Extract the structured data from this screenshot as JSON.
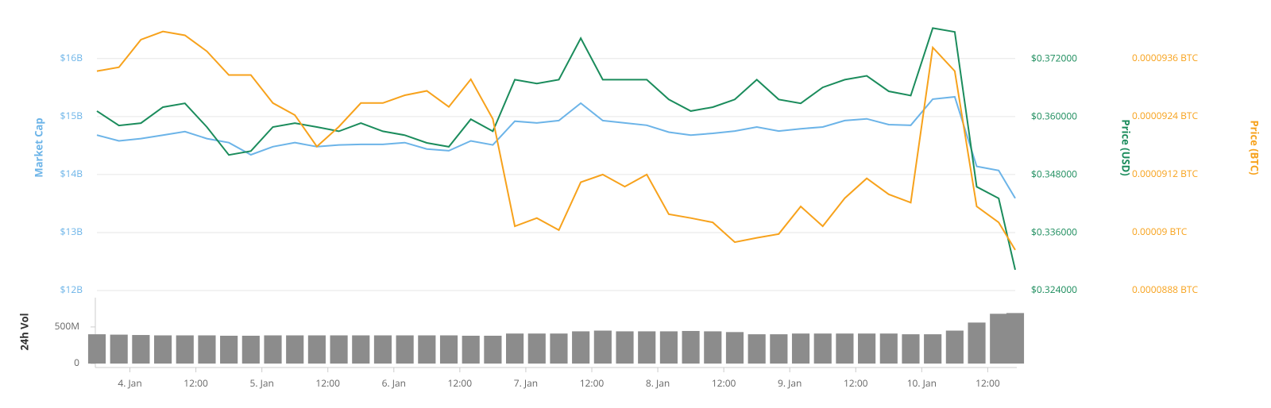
{
  "chart_data": [
    {
      "type": "line",
      "y_label": "Market Cap",
      "y2_label": "Price (USD)",
      "y3_label": "Price (BTC)",
      "x": [
        -6,
        -2,
        2,
        6,
        10,
        14,
        18,
        22,
        26,
        30,
        34,
        38,
        42,
        46,
        50,
        54,
        58,
        62,
        66,
        70,
        74,
        78,
        82,
        86,
        90,
        94,
        98,
        102,
        106,
        110,
        114,
        118,
        122,
        126,
        130,
        134,
        138,
        142,
        146,
        150,
        154,
        158,
        161
      ],
      "xlim": [
        -6,
        161
      ],
      "ylim": [
        12000000000,
        16900000000
      ],
      "yticks": [
        {
          "value": 12000000000,
          "label": "$12B"
        },
        {
          "value": 13000000000,
          "label": "$13B"
        },
        {
          "value": 14000000000,
          "label": "$14B"
        },
        {
          "value": 15000000000,
          "label": "$15B"
        },
        {
          "value": 16000000000,
          "label": "$16B"
        }
      ],
      "y2lim": [
        0.324,
        0.3829
      ],
      "y2ticks": [
        {
          "value": 0.324,
          "label": "$0.324000"
        },
        {
          "value": 0.336,
          "label": "$0.336000"
        },
        {
          "value": 0.348,
          "label": "$0.348000"
        },
        {
          "value": 0.36,
          "label": "$0.360000"
        },
        {
          "value": 0.372,
          "label": "$0.372000"
        }
      ],
      "y3lim": [
        8.88e-05,
        9.468e-05
      ],
      "y3ticks": [
        {
          "value": 8.88e-05,
          "label": "0.0000888 BTC"
        },
        {
          "value": 9e-05,
          "label": "0.00009 BTC"
        },
        {
          "value": 9.12e-05,
          "label": "0.0000912 BTC"
        },
        {
          "value": 9.24e-05,
          "label": "0.0000924 BTC"
        },
        {
          "value": 9.36e-05,
          "label": "0.0000936 BTC"
        }
      ],
      "grid": true,
      "series": [
        {
          "name": "Market Cap",
          "color": "#6cb4e8",
          "axis": "y",
          "values": [
            14680000000,
            14580000000,
            14620000000,
            14680000000,
            14740000000,
            14620000000,
            14550000000,
            14340000000,
            14480000000,
            14550000000,
            14480000000,
            14510000000,
            14520000000,
            14520000000,
            14550000000,
            14440000000,
            14410000000,
            14580000000,
            14510000000,
            14920000000,
            14890000000,
            14930000000,
            15230000000,
            14930000000,
            14890000000,
            14850000000,
            14730000000,
            14680000000,
            14710000000,
            14750000000,
            14820000000,
            14750000000,
            14790000000,
            14820000000,
            14930000000,
            14960000000,
            14860000000,
            14850000000,
            15300000000,
            15340000000,
            14140000000,
            14070000000,
            13590000000
          ]
        },
        {
          "name": "Price (USD)",
          "color": "#1b8c5c",
          "axis": "y2",
          "values": [
            0.3612,
            0.3582,
            0.3587,
            0.362,
            0.3628,
            0.3579,
            0.3521,
            0.3529,
            0.3579,
            0.3587,
            0.3579,
            0.357,
            0.3587,
            0.357,
            0.3562,
            0.3546,
            0.3538,
            0.3595,
            0.357,
            0.3677,
            0.3669,
            0.3677,
            0.3763,
            0.3677,
            0.3677,
            0.3677,
            0.3636,
            0.3612,
            0.362,
            0.3636,
            0.3677,
            0.3636,
            0.3628,
            0.3661,
            0.3677,
            0.3685,
            0.3653,
            0.3644,
            0.3784,
            0.3776,
            0.3455,
            0.3431,
            0.3283
          ]
        },
        {
          "name": "Price (BTC)",
          "color": "#f7a21c",
          "axis": "y3",
          "values": [
            9.334e-05,
            9.342e-05,
            9.399e-05,
            9.416e-05,
            9.408e-05,
            9.375e-05,
            9.326e-05,
            9.326e-05,
            9.268e-05,
            9.243e-05,
            9.178e-05,
            9.219e-05,
            9.268e-05,
            9.268e-05,
            9.284e-05,
            9.293e-05,
            9.26e-05,
            9.317e-05,
            9.235e-05,
            9.013e-05,
            9.03e-05,
            9.005e-05,
            9.104e-05,
            9.12e-05,
            9.095e-05,
            9.12e-05,
            9.038e-05,
            9.03e-05,
            9.021e-05,
            8.98e-05,
            8.989e-05,
            8.997e-05,
            9.054e-05,
            9.013e-05,
            9.071e-05,
            9.112e-05,
            9.079e-05,
            9.062e-05,
            9.383e-05,
            9.334e-05,
            9.054e-05,
            9.021e-05,
            8.964e-05
          ]
        }
      ]
    },
    {
      "type": "bar",
      "y_label": "24h Vol",
      "x": [
        -6,
        -2,
        2,
        6,
        10,
        14,
        18,
        22,
        26,
        30,
        34,
        38,
        42,
        46,
        50,
        54,
        58,
        62,
        66,
        70,
        74,
        78,
        82,
        86,
        90,
        94,
        98,
        102,
        106,
        110,
        114,
        118,
        122,
        126,
        130,
        134,
        138,
        142,
        146,
        150,
        154,
        158,
        161
      ],
      "xlim": [
        -6,
        161
      ],
      "xticks": [
        {
          "value": 0,
          "label": "4. Jan"
        },
        {
          "value": 12,
          "label": "12:00"
        },
        {
          "value": 24,
          "label": "5. Jan"
        },
        {
          "value": 36,
          "label": "12:00"
        },
        {
          "value": 48,
          "label": "6. Jan"
        },
        {
          "value": 60,
          "label": "12:00"
        },
        {
          "value": 72,
          "label": "7. Jan"
        },
        {
          "value": 84,
          "label": "12:00"
        },
        {
          "value": 96,
          "label": "8. Jan"
        },
        {
          "value": 108,
          "label": "12:00"
        },
        {
          "value": 120,
          "label": "9. Jan"
        },
        {
          "value": 132,
          "label": "12:00"
        },
        {
          "value": 144,
          "label": "10. Jan"
        },
        {
          "value": 156,
          "label": "12:00"
        }
      ],
      "ylim": [
        0,
        900000000
      ],
      "yticks": [
        0,
        {
          "value": 500000000,
          "label": "500M"
        }
      ],
      "color": "#8c8c8c",
      "values": [
        400000000,
        395000000,
        390000000,
        385000000,
        385000000,
        385000000,
        380000000,
        380000000,
        385000000,
        385000000,
        385000000,
        385000000,
        385000000,
        385000000,
        385000000,
        385000000,
        385000000,
        380000000,
        380000000,
        410000000,
        410000000,
        410000000,
        440000000,
        450000000,
        440000000,
        440000000,
        440000000,
        445000000,
        440000000,
        430000000,
        400000000,
        400000000,
        410000000,
        410000000,
        410000000,
        410000000,
        410000000,
        400000000,
        400000000,
        450000000,
        560000000,
        680000000,
        690000000
      ]
    }
  ]
}
